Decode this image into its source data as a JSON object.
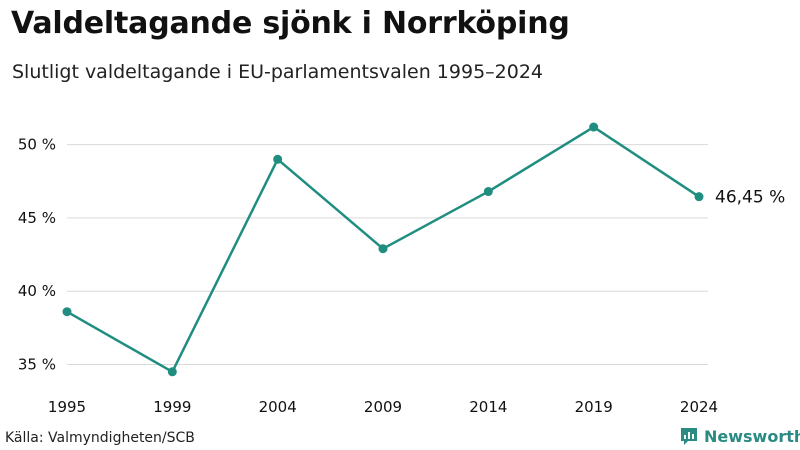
{
  "title": "Valdeltagande sjönk i Norrköping",
  "subtitle": "Slutligt valdeltagande i EU-parlamentsvalen 1995–2024",
  "source": "Källa: Valmyndigheten/SCB",
  "brand": {
    "name": "Newsworthy",
    "icon": "newsworthy-logo-icon"
  },
  "colors": {
    "line": "#1f8e80",
    "grid": "#d9d9d9",
    "text": "#111111",
    "brand": "#2a8a84"
  },
  "chart_data": {
    "type": "line",
    "title": "Valdeltagande sjönk i Norrköping",
    "subtitle": "Slutligt valdeltagande i EU-parlamentsvalen 1995–2024",
    "xlabel": "",
    "ylabel": "",
    "x": [
      "1995",
      "1999",
      "2004",
      "2009",
      "2014",
      "2019",
      "2024"
    ],
    "series": [
      {
        "name": "Valdeltagande",
        "values": [
          38.6,
          34.5,
          49.0,
          42.9,
          46.8,
          51.2,
          46.45
        ]
      }
    ],
    "ylim": [
      33.6,
      52.5
    ],
    "yticks": [
      35,
      40,
      45,
      50
    ],
    "ytick_labels": [
      "35 %",
      "40 %",
      "45 %",
      "50 %"
    ],
    "grid": true,
    "end_label": "46,45 %"
  }
}
